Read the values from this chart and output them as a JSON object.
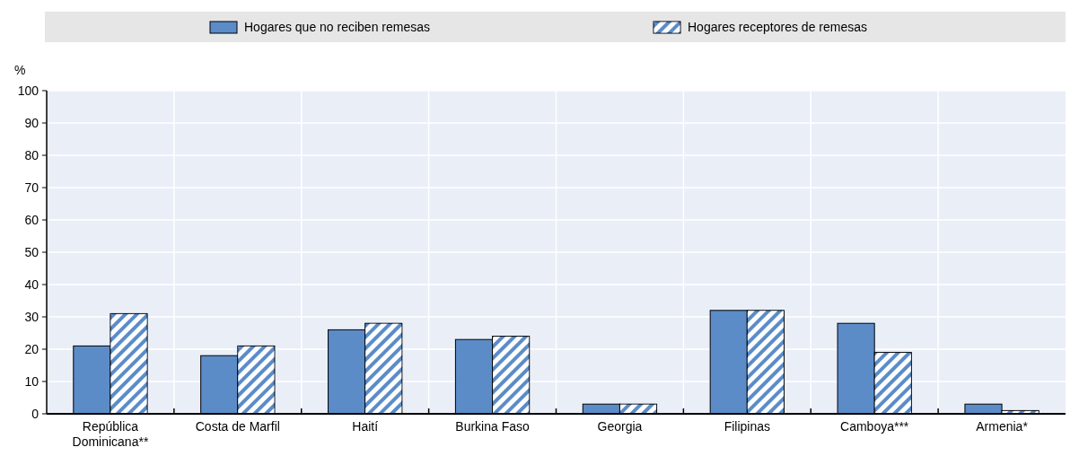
{
  "chart_data": {
    "type": "bar",
    "ylabel": "%",
    "categories": [
      "República Dominicana**",
      "Costa de Marfil",
      "Haití",
      "Burkina Faso",
      "Georgia",
      "Filipinas",
      "Camboya***",
      "Armenia*"
    ],
    "series": [
      {
        "name": "Hogares que no reciben remesas",
        "color": "#5b8cc8",
        "values": [
          21,
          18,
          26,
          23,
          3,
          32,
          28,
          3
        ]
      },
      {
        "name": "Hogares receptores de remesas",
        "color": "#5b8cc8",
        "values": [
          31,
          21,
          28,
          24,
          3,
          32,
          19,
          1
        ]
      }
    ],
    "ylim": [
      0,
      100
    ],
    "yticks": [
      0,
      10,
      20,
      30,
      40,
      50,
      60,
      70,
      80,
      90,
      100
    ],
    "grid": true,
    "legend": "top"
  }
}
